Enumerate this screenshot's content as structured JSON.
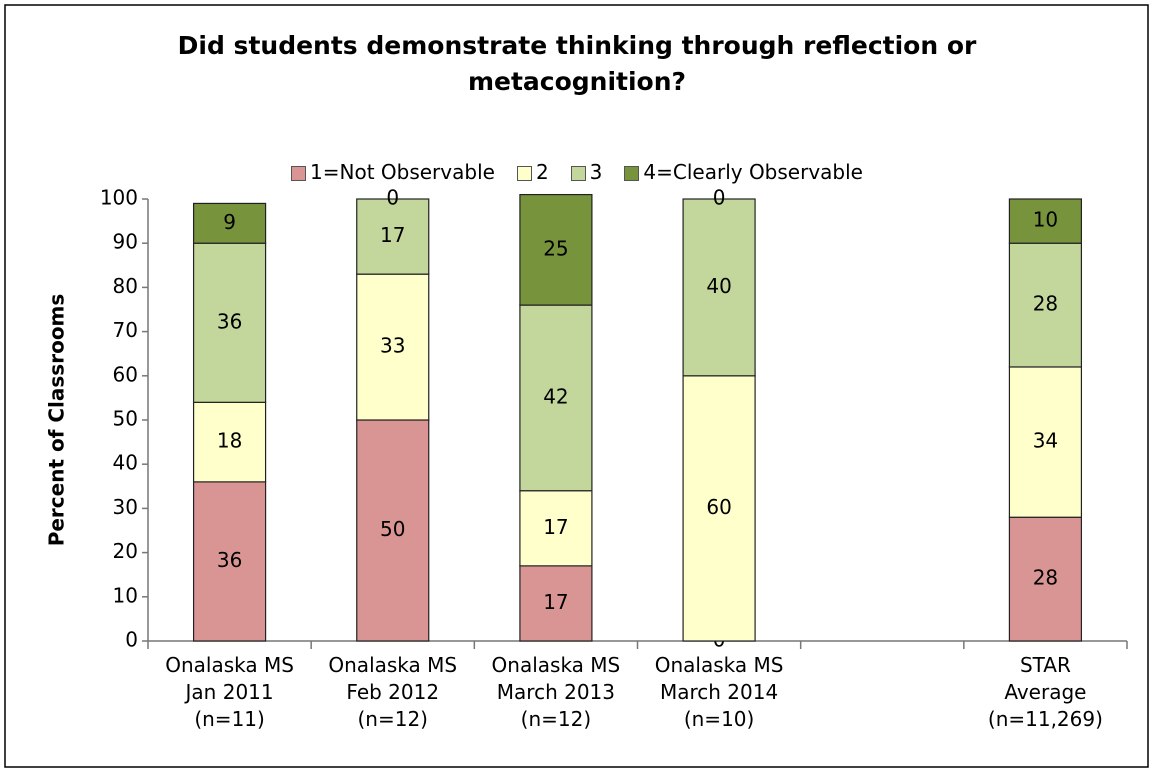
{
  "chart_data": {
    "type": "stacked_bar",
    "title": "Did students demonstrate thinking through reflection or metacognition?",
    "y_label": "Percent of Classrooms",
    "categories": [
      "Onalaska MS\nJan 2011\n(n=11)",
      "Onalaska MS\nFeb 2012\n(n=12)",
      "Onalaska MS\nMarch 2013\n(n=12)",
      "Onalaska MS\nMarch 2014\n(n=10)",
      null,
      "STAR\nAverage\n(n=11,269)"
    ],
    "series": [
      {
        "name": "1=Not Observable",
        "color": "#d99594",
        "values": [
          36,
          50,
          17,
          0,
          null,
          28
        ]
      },
      {
        "name": "2",
        "color": "#ffffcc",
        "values": [
          18,
          33,
          17,
          60,
          null,
          34
        ]
      },
      {
        "name": "3",
        "color": "#c3d69b",
        "values": [
          36,
          17,
          42,
          40,
          null,
          28
        ]
      },
      {
        "name": "4=Clearly Observable",
        "color": "#77933c",
        "values": [
          9,
          0,
          25,
          0,
          null,
          10
        ]
      }
    ],
    "ylim": [
      0,
      100
    ],
    "yticks": [
      0,
      10,
      20,
      30,
      40,
      50,
      60,
      70,
      80,
      90,
      100
    ],
    "legend": "top"
  }
}
